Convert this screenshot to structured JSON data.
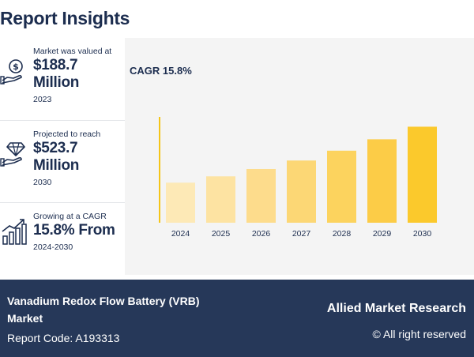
{
  "page": {
    "title": "Report Insights"
  },
  "stats": [
    {
      "label": "Market was valued at",
      "value_line1": "$188.7",
      "value_line2": "Million",
      "sub": "2023",
      "icon": "money-hand-icon"
    },
    {
      "label": "Projected to reach",
      "value_line1": "$523.7",
      "value_line2": "Million",
      "sub": "2030",
      "icon": "diamond-hand-icon"
    },
    {
      "label": "Growing at a CAGR",
      "value_line1": "15.8% From",
      "value_line2": "",
      "sub": "2024-2030",
      "icon": "growth-chart-icon"
    }
  ],
  "chart_data": {
    "type": "bar",
    "title": "CAGR 15.8%",
    "categories": [
      "2024",
      "2025",
      "2026",
      "2027",
      "2028",
      "2029",
      "2030"
    ],
    "values": [
      218.5,
      253.0,
      293.0,
      339.3,
      392.9,
      455.0,
      523.7
    ],
    "ylim": [
      0,
      560
    ],
    "colors": [
      "#fde9b6",
      "#fde3a2",
      "#fddc8c",
      "#fcd775",
      "#fcd35e",
      "#fccc47",
      "#fbc92c"
    ],
    "axis_color": "#f5c518",
    "grid": false
  },
  "footer": {
    "market_line1": "Vanadium Redox Flow Battery (VRB)",
    "market_line2": "Market",
    "report_code": "Report Code: A193313",
    "brand": "Allied Market Research",
    "rights": "© All right reserved"
  }
}
